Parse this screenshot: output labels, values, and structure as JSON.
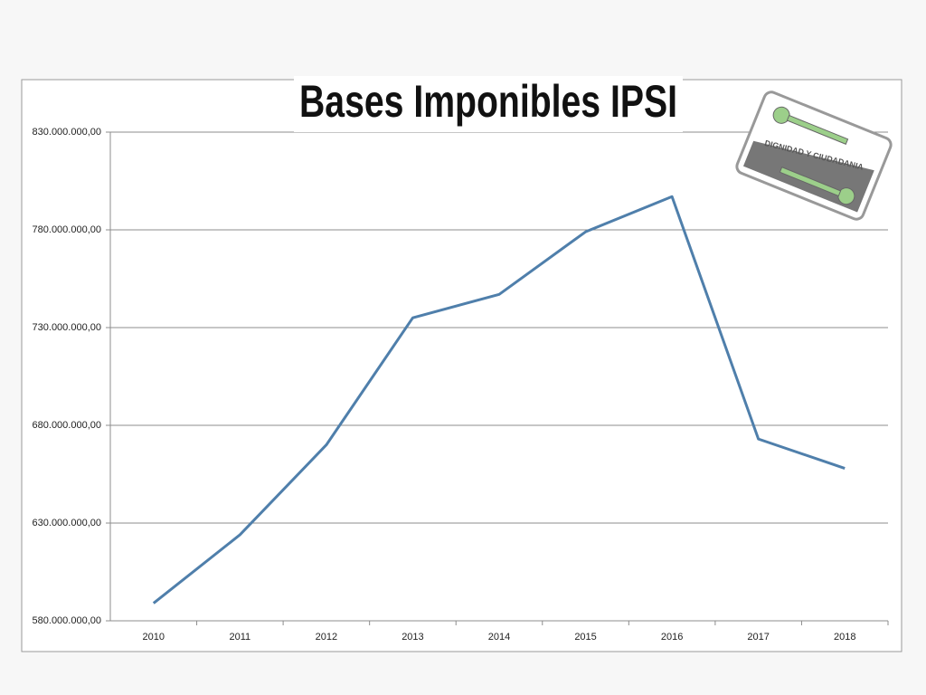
{
  "chart_data": {
    "type": "line",
    "title": "Bases Imponibles IPSI",
    "categories": [
      "2010",
      "2011",
      "2012",
      "2013",
      "2014",
      "2015",
      "2016",
      "2017",
      "2018"
    ],
    "series": [
      {
        "name": "Bases Imponibles",
        "color": "#4f7fab",
        "values": [
          589000000,
          624000000,
          670000000,
          735000000,
          747000000,
          779000000,
          797000000,
          673000000,
          658000000
        ]
      }
    ],
    "ylim": [
      580000000,
      830000000
    ],
    "yticks": [
      {
        "value": 580000000,
        "label": "580.000.000,00"
      },
      {
        "value": 630000000,
        "label": "630.000.000,00"
      },
      {
        "value": 680000000,
        "label": "680.000.000,00"
      },
      {
        "value": 730000000,
        "label": "730.000.000,00"
      },
      {
        "value": 780000000,
        "label": "780.000.000,00"
      },
      {
        "value": 830000000,
        "label": "830.000.000,00"
      }
    ],
    "grid": true
  },
  "logo_text": "DIGNIDAD Y CIUDADANIA"
}
